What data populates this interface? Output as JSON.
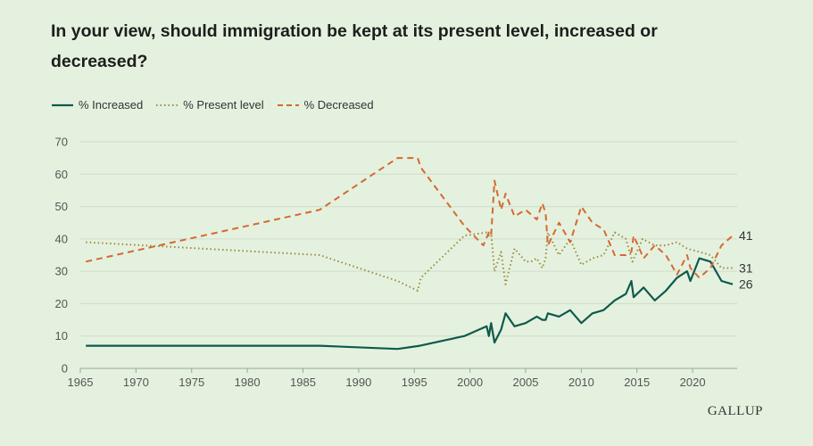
{
  "title": "In your view, should immigration be kept at its present level, increased or decreased?",
  "logo_text": "GALLUP",
  "colors": {
    "background": "#e5f1df",
    "increased": "#0e5a4c",
    "present": "#9a8d3a",
    "decreased": "#d36a2f",
    "grid": "#cfdcca",
    "axis_text": "#555555"
  },
  "chart_data": {
    "type": "line",
    "title": "In your view, should immigration be kept at its present level, increased or decreased?",
    "xlabel": "",
    "ylabel": "",
    "xlim": [
      1965,
      2024
    ],
    "ylim": [
      0,
      70
    ],
    "x_ticks": [
      1965,
      1970,
      1975,
      1980,
      1985,
      1990,
      1995,
      2000,
      2005,
      2010,
      2015,
      2020
    ],
    "y_ticks": [
      0,
      10,
      20,
      30,
      40,
      50,
      60,
      70
    ],
    "grid": true,
    "legend_position": "top-left",
    "series": [
      {
        "name": "% Increased",
        "style": "solid",
        "color": "#0e5a4c",
        "end_label": "26",
        "points": [
          [
            1965.5,
            7
          ],
          [
            1986.5,
            7
          ],
          [
            1993.5,
            6
          ],
          [
            1995.5,
            7
          ],
          [
            1999.5,
            10
          ],
          [
            2001.5,
            13
          ],
          [
            2001.7,
            10
          ],
          [
            2001.9,
            14
          ],
          [
            2002.2,
            8
          ],
          [
            2002.8,
            12
          ],
          [
            2003.2,
            17
          ],
          [
            2004,
            13
          ],
          [
            2005,
            14
          ],
          [
            2006,
            16
          ],
          [
            2006.5,
            15
          ],
          [
            2006.8,
            15
          ],
          [
            2007,
            17
          ],
          [
            2008,
            16
          ],
          [
            2009,
            18
          ],
          [
            2010,
            14
          ],
          [
            2011,
            17
          ],
          [
            2012,
            18
          ],
          [
            2013,
            21
          ],
          [
            2014,
            23
          ],
          [
            2014.5,
            27
          ],
          [
            2014.7,
            22
          ],
          [
            2015.6,
            25
          ],
          [
            2016.6,
            21
          ],
          [
            2017.6,
            24
          ],
          [
            2018.6,
            28
          ],
          [
            2019.5,
            30
          ],
          [
            2019.8,
            27
          ],
          [
            2020.6,
            34
          ],
          [
            2021.6,
            33
          ],
          [
            2022.6,
            27
          ],
          [
            2023.6,
            26
          ]
        ]
      },
      {
        "name": "% Present level",
        "style": "dotted",
        "color": "#9a8d3a",
        "end_label": "31",
        "points": [
          [
            1965.5,
            39
          ],
          [
            1986.5,
            35
          ],
          [
            1993.5,
            27
          ],
          [
            1995.3,
            24
          ],
          [
            1995.6,
            28
          ],
          [
            1999.5,
            41
          ],
          [
            2001.5,
            42
          ],
          [
            2001.7,
            41
          ],
          [
            2001.9,
            42
          ],
          [
            2002.2,
            30
          ],
          [
            2002.8,
            36
          ],
          [
            2003.2,
            26
          ],
          [
            2004,
            37
          ],
          [
            2005,
            33
          ],
          [
            2005.5,
            33
          ],
          [
            2006,
            34
          ],
          [
            2006.5,
            31
          ],
          [
            2006.8,
            34
          ],
          [
            2007,
            42
          ],
          [
            2008,
            35
          ],
          [
            2009,
            40
          ],
          [
            2010,
            32
          ],
          [
            2011,
            34
          ],
          [
            2012,
            35
          ],
          [
            2013,
            42
          ],
          [
            2014,
            40
          ],
          [
            2014.6,
            33
          ],
          [
            2015.5,
            40
          ],
          [
            2016.6,
            38
          ],
          [
            2017.6,
            38
          ],
          [
            2018.6,
            39
          ],
          [
            2019.5,
            37
          ],
          [
            2020.6,
            36
          ],
          [
            2021.6,
            35
          ],
          [
            2022.6,
            31
          ],
          [
            2023.6,
            31
          ]
        ]
      },
      {
        "name": "% Decreased",
        "style": "dashed",
        "color": "#d36a2f",
        "end_label": "41",
        "points": [
          [
            1965.5,
            33
          ],
          [
            1986.5,
            49
          ],
          [
            1993.5,
            65
          ],
          [
            1995.3,
            65
          ],
          [
            1995.6,
            62
          ],
          [
            1999.5,
            44
          ],
          [
            2001.2,
            38
          ],
          [
            2001.7,
            42
          ],
          [
            2001.9,
            41
          ],
          [
            2002.2,
            58
          ],
          [
            2002.8,
            49
          ],
          [
            2003.2,
            54
          ],
          [
            2004,
            47
          ],
          [
            2005,
            49
          ],
          [
            2006,
            46
          ],
          [
            2006.5,
            51
          ],
          [
            2006.8,
            48
          ],
          [
            2007,
            38
          ],
          [
            2008,
            45
          ],
          [
            2009,
            39
          ],
          [
            2010,
            50
          ],
          [
            2011,
            45
          ],
          [
            2012,
            43
          ],
          [
            2013,
            35
          ],
          [
            2014,
            35
          ],
          [
            2014.5,
            36
          ],
          [
            2014.7,
            41
          ],
          [
            2015.6,
            34
          ],
          [
            2016.6,
            38
          ],
          [
            2017.6,
            35
          ],
          [
            2018.6,
            29
          ],
          [
            2019.5,
            35
          ],
          [
            2019.8,
            31
          ],
          [
            2020.6,
            28
          ],
          [
            2021.6,
            31
          ],
          [
            2022.6,
            38
          ],
          [
            2023.6,
            41
          ]
        ]
      }
    ]
  }
}
